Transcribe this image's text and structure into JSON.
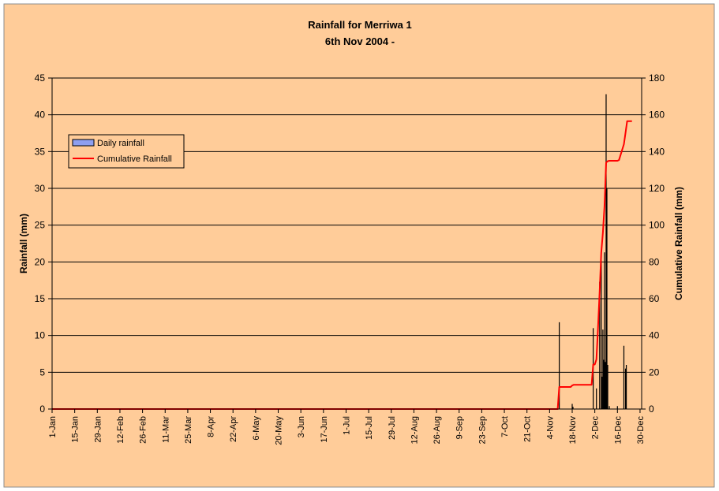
{
  "chart_data": {
    "type": "bar",
    "title": "Rainfall for Merriwa 1",
    "subtitle": "6th Nov 2004 -",
    "ylabel": "Rainfall (mm)",
    "y2label": "Cumulative Rainfall  (mm)",
    "xlabel": "",
    "ylim": [
      0,
      45
    ],
    "y2lim": [
      0,
      180
    ],
    "yticks": [
      0,
      5,
      10,
      15,
      20,
      25,
      30,
      35,
      40,
      45
    ],
    "y2ticks": [
      0,
      20,
      40,
      60,
      80,
      100,
      120,
      140,
      160,
      180
    ],
    "xlim": [
      1,
      366
    ],
    "x_tick_days": [
      1,
      15,
      29,
      43,
      57,
      71,
      85,
      99,
      113,
      127,
      141,
      155,
      169,
      183,
      197,
      211,
      225,
      239,
      253,
      267,
      281,
      295,
      309,
      323,
      337,
      351,
      365
    ],
    "x_tick_labels": [
      "1-Jan",
      "15-Jan",
      "29-Jan",
      "12-Feb",
      "26-Feb",
      "11-Mar",
      "25-Mar",
      "8-Apr",
      "22-Apr",
      "6-May",
      "20-May",
      "3-Jun",
      "17-Jun",
      "1-Jul",
      "15-Jul",
      "29-Jul",
      "12-Aug",
      "26-Aug",
      "9-Sep",
      "23-Sep",
      "7-Oct",
      "21-Oct",
      "4-Nov",
      "18-Nov",
      "2-Dec",
      "16-Dec",
      "30-Dec"
    ],
    "grid": true,
    "legend_position": "top-left",
    "series": [
      {
        "name": "Daily rainfall",
        "kind": "bar",
        "axis": "left",
        "color": "#8e9ff0",
        "x": [
          315,
          323,
          323.5,
          336,
          338,
          340,
          341,
          341.5,
          342,
          342.5,
          343,
          343.5,
          344,
          344.5,
          345,
          346,
          351,
          355,
          356,
          356.5
        ],
        "values": [
          11.8,
          0.7,
          0.3,
          11.0,
          2.8,
          17.3,
          20.2,
          4.4,
          10.8,
          6.7,
          21.3,
          6.4,
          42.8,
          30.0,
          6.0,
          0.4,
          0.4,
          8.6,
          5.5,
          6.0
        ]
      },
      {
        "name": "Cumulative Rainfall",
        "kind": "line",
        "axis": "right",
        "color": "#ff0000",
        "x": [
          1,
          314,
          315,
          322,
          323,
          324,
          335,
          336,
          337,
          338,
          339,
          340,
          341,
          342,
          343,
          344,
          345,
          346,
          351,
          352,
          355,
          356,
          357,
          360
        ],
        "values": [
          0,
          0,
          12,
          12,
          12.8,
          13.2,
          13.2,
          24.2,
          24.2,
          27,
          44,
          64,
          85,
          96,
          110,
          134,
          134.8,
          135,
          135,
          135.4,
          144,
          150,
          156.5,
          156.5
        ]
      }
    ]
  }
}
